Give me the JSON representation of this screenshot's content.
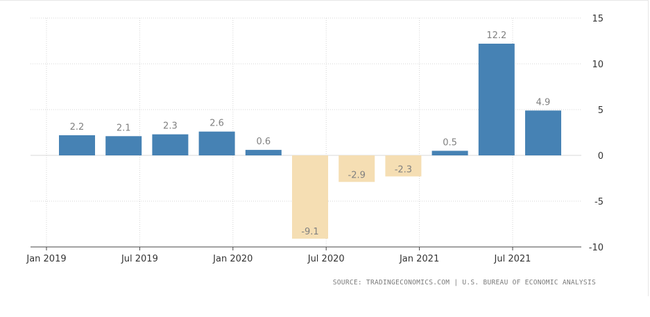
{
  "chart_data": {
    "type": "bar",
    "categories": [
      "2019 Q1",
      "2019 Q2",
      "2019 Q3",
      "2019 Q4",
      "2020 Q1",
      "2020 Q2",
      "2020 Q3",
      "2020 Q4",
      "2021 Q1",
      "2021 Q2",
      "2021 Q3"
    ],
    "values": [
      2.2,
      2.1,
      2.3,
      2.6,
      0.6,
      -9.1,
      -2.9,
      -2.3,
      0.5,
      12.2,
      4.9
    ],
    "data_labels": [
      "2.2",
      "2.1",
      "2.3",
      "2.6",
      "0.6",
      "-9.1",
      "-2.9",
      "-2.3",
      "0.5",
      "12.2",
      "4.9"
    ],
    "x_tick_labels": [
      "Jan 2019",
      "Jul 2019",
      "Jan 2020",
      "Jul 2020",
      "Jan 2021",
      "Jul 2021"
    ],
    "y_ticks": [
      15,
      10,
      5,
      0,
      -5,
      -10
    ],
    "y_tick_labels": [
      "15",
      "10",
      "5",
      "0",
      "-5",
      "-10"
    ],
    "ylim": [
      -10,
      15
    ],
    "y_axis_side": "right",
    "grid": true,
    "colors": {
      "positive": "#4682b4",
      "negative": "#f5deb3",
      "label": "#808080",
      "grid": "#d4d4d4"
    },
    "source": "SOURCE: TRADINGECONOMICS.COM | U.S. BUREAU OF ECONOMIC ANALYSIS"
  }
}
